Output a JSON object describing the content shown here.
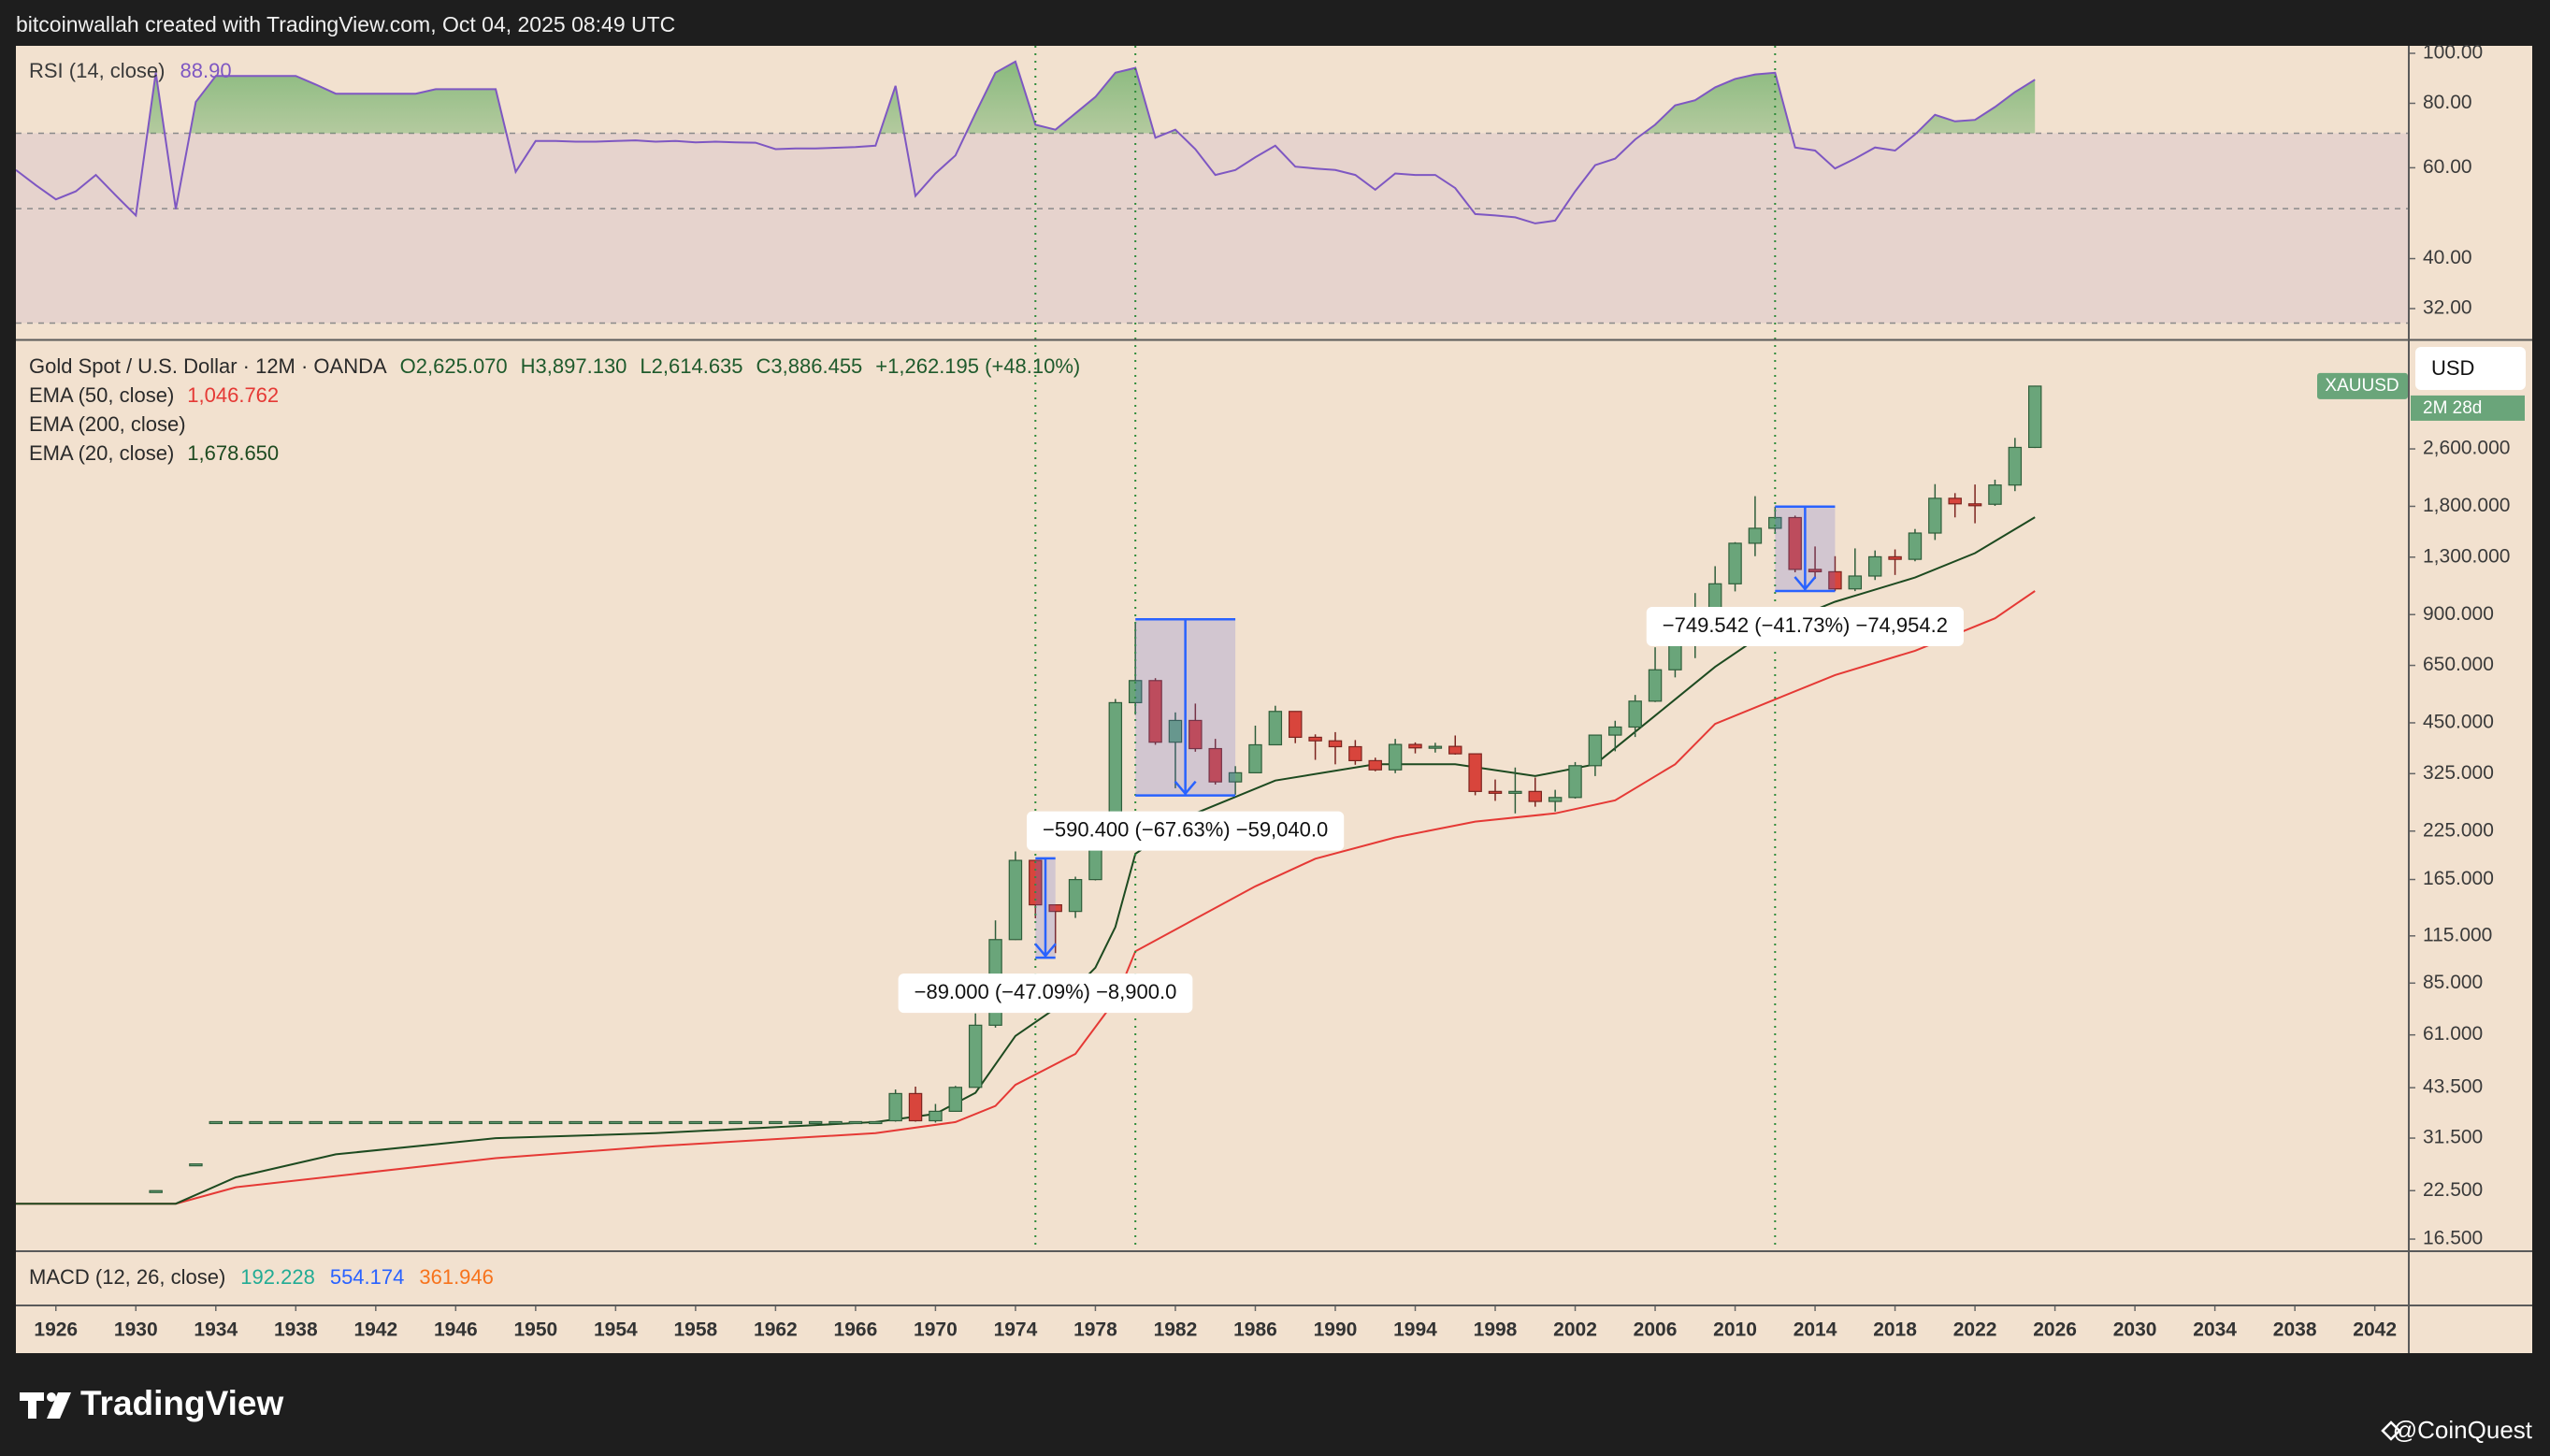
{
  "header": "bitcoinwallah created with TradingView.com, Oct 04, 2025 08:49 UTC",
  "footer": {
    "brand": "TradingView",
    "credit": "@CoinQuest"
  },
  "chart_data": [
    {
      "type": "line",
      "title": "RSI (14, close)",
      "readout": {
        "value": 88.9,
        "label": "88.90"
      },
      "color": "#7e57c2",
      "log_scale": true,
      "xlim": [
        1924,
        2043.7
      ],
      "ylim": [
        28,
        103.4
      ],
      "yticks": [
        {
          "value": 100,
          "label": "100.00"
        },
        {
          "value": 80,
          "label": "80.00"
        },
        {
          "value": 60,
          "label": "60.00"
        },
        {
          "value": 40,
          "label": "40.00"
        },
        {
          "value": 32,
          "label": "32.00"
        }
      ],
      "band": [
        30,
        70
      ],
      "midline": 50,
      "x": [
        1924,
        1925,
        1926,
        1927,
        1928,
        1929,
        1930,
        1931,
        1932,
        1933,
        1934,
        1935,
        1936,
        1937,
        1938,
        1939,
        1940,
        1941,
        1942,
        1943,
        1944,
        1945,
        1946,
        1947,
        1948,
        1949,
        1950,
        1951,
        1952,
        1953,
        1954,
        1955,
        1956,
        1957,
        1958,
        1959,
        1960,
        1961,
        1962,
        1963,
        1964,
        1965,
        1966,
        1967,
        1968,
        1969,
        1970,
        1971,
        1972,
        1973,
        1974,
        1975,
        1976,
        1977,
        1978,
        1979,
        1980,
        1981,
        1982,
        1983,
        1984,
        1985,
        1986,
        1987,
        1988,
        1989,
        1990,
        1991,
        1992,
        1993,
        1994,
        1995,
        1996,
        1997,
        1998,
        1999,
        2000,
        2001,
        2002,
        2003,
        2004,
        2005,
        2006,
        2007,
        2008,
        2009,
        2010,
        2011,
        2012,
        2013,
        2014,
        2015,
        2016,
        2017,
        2018,
        2019,
        2020,
        2021,
        2022,
        2023,
        2024,
        2025
      ],
      "values": [
        59.4,
        55.5,
        52.1,
        54.0,
        58.1,
        53.0,
        48.5,
        91.7,
        49.9,
        80.5,
        90.4,
        90.4,
        90.4,
        90.4,
        90.4,
        87.0,
        83.5,
        83.5,
        83.5,
        83.5,
        83.5,
        85.2,
        85.2,
        85.2,
        85.2,
        58.9,
        67.6,
        67.6,
        67.4,
        67.4,
        67.6,
        67.8,
        67.4,
        67.6,
        67.2,
        67.4,
        67.2,
        67.1,
        65.2,
        65.4,
        65.4,
        65.6,
        65.8,
        66.2,
        86.5,
        52.9,
        58.5,
        63.4,
        76.5,
        91.7,
        96.4,
        72.7,
        71.1,
        76.5,
        82.3,
        91.7,
        93.7,
        68.6,
        71.1,
        65.2,
        58.1,
        59.4,
        62.9,
        66.2,
        60.3,
        59.8,
        59.4,
        58.1,
        54.4,
        58.5,
        58.1,
        58.1,
        54.8,
        48.8,
        48.5,
        48.1,
        46.8,
        47.4,
        54.0,
        60.7,
        62.5,
        68.1,
        72.7,
        79.3,
        81.1,
        85.9,
        89.2,
        91.0,
        91.7,
        65.7,
        64.8,
        59.8,
        62.5,
        65.7,
        64.8,
        69.6,
        76.0,
        73.8,
        74.3,
        78.7,
        84.1,
        88.9
      ]
    },
    {
      "type": "candlestick",
      "title": "Gold Spot / U.S. Dollar · 12M · OANDA",
      "readout": [
        "O2,625.070",
        "H3,897.130",
        "L2,614.635",
        "C3,886.455",
        "+1,262.195 (+48.10%)"
      ],
      "log_scale": true,
      "xlim": [
        1924,
        2043.7
      ],
      "xticks": [
        1926,
        1930,
        1934,
        1938,
        1942,
        1946,
        1950,
        1954,
        1958,
        1962,
        1966,
        1970,
        1974,
        1978,
        1982,
        1986,
        1990,
        1994,
        1998,
        2002,
        2006,
        2010,
        2014,
        2018,
        2022,
        2026,
        2030,
        2034,
        2038,
        2042
      ],
      "ylim": [
        15.36,
        5178
      ],
      "yticks": [
        {
          "value": 2600,
          "label": "2,600.000"
        },
        {
          "value": 1800,
          "label": "1,800.000"
        },
        {
          "value": 1300,
          "label": "1,300.000"
        },
        {
          "value": 900,
          "label": "900.000"
        },
        {
          "value": 650,
          "label": "650.000"
        },
        {
          "value": 450,
          "label": "450.000"
        },
        {
          "value": 325,
          "label": "325.000"
        },
        {
          "value": 225,
          "label": "225.000"
        },
        {
          "value": 165,
          "label": "165.000"
        },
        {
          "value": 115,
          "label": "115.000"
        },
        {
          "value": 85,
          "label": "85.000"
        },
        {
          "value": 61,
          "label": "61.000"
        },
        {
          "value": 43.5,
          "label": "43.500"
        },
        {
          "value": 31.5,
          "label": "31.500"
        },
        {
          "value": 22.5,
          "label": "22.500"
        },
        {
          "value": 16.5,
          "label": "16.500"
        }
      ],
      "up_color": "#6aa57a",
      "down_color": "#d8453c",
      "candles": {
        "x": [
          1931,
          1933,
          1934,
          1935,
          1936,
          1937,
          1938,
          1939,
          1940,
          1941,
          1942,
          1943,
          1944,
          1945,
          1946,
          1947,
          1948,
          1949,
          1950,
          1951,
          1952,
          1953,
          1954,
          1955,
          1956,
          1957,
          1958,
          1959,
          1960,
          1961,
          1962,
          1963,
          1964,
          1965,
          1966,
          1967,
          1968,
          1969,
          1970,
          1971,
          1972,
          1973,
          1974,
          1975,
          1976,
          1977,
          1978,
          1979,
          1980,
          1981,
          1982,
          1983,
          1984,
          1985,
          1986,
          1987,
          1988,
          1989,
          1990,
          1991,
          1992,
          1993,
          1994,
          1995,
          1996,
          1997,
          1998,
          1999,
          2000,
          2001,
          2002,
          2003,
          2004,
          2005,
          2006,
          2007,
          2008,
          2009,
          2010,
          2011,
          2012,
          2013,
          2014,
          2015,
          2016,
          2017,
          2018,
          2019,
          2020,
          2021,
          2022,
          2023,
          2024,
          2025
        ],
        "ohlc": [
          [
            22.5,
            22.5,
            22.5,
            22.5
          ],
          [
            26.7,
            26.7,
            26.7,
            26.7
          ],
          [
            35,
            35,
            35,
            35
          ],
          [
            35,
            35,
            35,
            35
          ],
          [
            35,
            35,
            35,
            35
          ],
          [
            35,
            35,
            35,
            35
          ],
          [
            35,
            35,
            35,
            35
          ],
          [
            35,
            35,
            35,
            35
          ],
          [
            35,
            35,
            35,
            35
          ],
          [
            35,
            35,
            35,
            35
          ],
          [
            35,
            35,
            35,
            35
          ],
          [
            35,
            35,
            35,
            35
          ],
          [
            35,
            35,
            35,
            35
          ],
          [
            35,
            35,
            35,
            35
          ],
          [
            35,
            35,
            35,
            35
          ],
          [
            35,
            35,
            35,
            35
          ],
          [
            35,
            35,
            35,
            35
          ],
          [
            35,
            35,
            35,
            35
          ],
          [
            35,
            35,
            35,
            35
          ],
          [
            35,
            35,
            35,
            35
          ],
          [
            35,
            35,
            35,
            35
          ],
          [
            35,
            35,
            35,
            35
          ],
          [
            35,
            35,
            35,
            35
          ],
          [
            35,
            35,
            35,
            35
          ],
          [
            35,
            35,
            35,
            35
          ],
          [
            35,
            35,
            35,
            35
          ],
          [
            35,
            35,
            35,
            35
          ],
          [
            35,
            35,
            35,
            35
          ],
          [
            35,
            35,
            35,
            35
          ],
          [
            35,
            35,
            35,
            35
          ],
          [
            35,
            35,
            35,
            35
          ],
          [
            35,
            35,
            35,
            35
          ],
          [
            35,
            35,
            35,
            35
          ],
          [
            35,
            35,
            35,
            35
          ],
          [
            35,
            35,
            35,
            35
          ],
          [
            35,
            35,
            35,
            35
          ],
          [
            35.2,
            43,
            35,
            41.9
          ],
          [
            41.9,
            43.8,
            35,
            35.2
          ],
          [
            35.2,
            39.2,
            34.8,
            37.4
          ],
          [
            37.4,
            44,
            37.3,
            43.6
          ],
          [
            43.6,
            70,
            43.5,
            64.9
          ],
          [
            64.9,
            127,
            63.9,
            112.3
          ],
          [
            112.3,
            197.5,
            112,
            186.5
          ],
          [
            186.5,
            186.5,
            128.7,
            140.3
          ],
          [
            140.3,
            140.5,
            103,
            134.5
          ],
          [
            134.5,
            168,
            129,
            164.9
          ],
          [
            164.9,
            243.6,
            164,
            226
          ],
          [
            226,
            524,
            216,
            512
          ],
          [
            512,
            850,
            474,
            589.8
          ],
          [
            589.8,
            599,
            391,
            397.5
          ],
          [
            397.5,
            481,
            296,
            456.9
          ],
          [
            456.9,
            509,
            374,
            381.5
          ],
          [
            381.5,
            406,
            303,
            308.3
          ],
          [
            308.3,
            341,
            284,
            326.8
          ],
          [
            326.8,
            442,
            326,
            390.9
          ],
          [
            390.9,
            502,
            390,
            484.1
          ],
          [
            484.1,
            485,
            395,
            410.2
          ],
          [
            410.2,
            418,
            355,
            401
          ],
          [
            401,
            424,
            345,
            386.2
          ],
          [
            386.2,
            403,
            344,
            353.2
          ],
          [
            353.2,
            360,
            330,
            333
          ],
          [
            333,
            406,
            326,
            391.8
          ],
          [
            391.8,
            397,
            370,
            383.3
          ],
          [
            383.3,
            396,
            372,
            387
          ],
          [
            387,
            415,
            367,
            369
          ],
          [
            369,
            369,
            283,
            290
          ],
          [
            290,
            313,
            273,
            288
          ],
          [
            288,
            338,
            252,
            290
          ],
          [
            290,
            317,
            263,
            272
          ],
          [
            272,
            293,
            255,
            279
          ],
          [
            279,
            350,
            277,
            342
          ],
          [
            342,
            417,
            320,
            416
          ],
          [
            416,
            456,
            375,
            438
          ],
          [
            438,
            538,
            411,
            517
          ],
          [
            517,
            730,
            514,
            632
          ],
          [
            632,
            845,
            602,
            834
          ],
          [
            834,
            1033,
            681,
            880
          ],
          [
            880,
            1227,
            802,
            1096
          ],
          [
            1096,
            1431,
            1044,
            1421
          ],
          [
            1421,
            1921,
            1308,
            1564
          ],
          [
            1564,
            1796,
            1527,
            1675
          ],
          [
            1675,
            1696,
            1180,
            1202
          ],
          [
            1202,
            1392,
            1131,
            1184
          ],
          [
            1184,
            1308,
            1046,
            1061
          ],
          [
            1061,
            1375,
            1046,
            1152
          ],
          [
            1152,
            1357,
            1123,
            1303
          ],
          [
            1303,
            1366,
            1160,
            1282
          ],
          [
            1282,
            1557,
            1266,
            1517
          ],
          [
            1517,
            2075,
            1451,
            1895
          ],
          [
            1895,
            1959,
            1677,
            1829
          ],
          [
            1829,
            2070,
            1615,
            1824
          ],
          [
            1824,
            2135,
            1805,
            2063
          ],
          [
            2063,
            2790,
            1984,
            2625
          ],
          [
            2625.07,
            3897.13,
            2614.635,
            3886.455
          ]
        ]
      },
      "series": [
        {
          "name": "EMA (50, close)",
          "color": "#e53935",
          "last": {
            "value": 1046.762,
            "label": "1,046.762"
          },
          "x": [
            1924,
            1932,
            1935,
            1948,
            1956,
            1967,
            1971,
            1973,
            1974,
            1977,
            1979,
            1980,
            1983,
            1986,
            1989,
            1993,
            1997,
            2001,
            2004,
            2007,
            2009,
            2012,
            2015,
            2019,
            2023,
            2025
          ],
          "values": [
            20.7,
            20.7,
            23.0,
            27.7,
            29.9,
            32.5,
            34.9,
            38.7,
            44.3,
            54.0,
            76.2,
            104.2,
            128.3,
            158,
            188.5,
            216,
            239,
            252,
            274,
            345,
            447,
            523,
            611,
            714,
            879,
            1046.762
          ]
        },
        {
          "name": "EMA (200, close)"
        },
        {
          "name": "EMA (20, close)",
          "color": "#1d4a20",
          "last": {
            "value": 1678.65,
            "label": "1,678.650"
          },
          "x": [
            1924,
            1932,
            1935,
            1940,
            1948,
            1956,
            1967,
            1970,
            1972,
            1974,
            1976,
            1978,
            1979,
            1980,
            1983,
            1987,
            1992,
            1996,
            2000,
            2003,
            2006,
            2009,
            2012,
            2015,
            2019,
            2022,
            2025
          ],
          "values": [
            20.7,
            20.7,
            24.5,
            28.4,
            31.5,
            32.5,
            34.9,
            36.8,
            42.1,
            60.6,
            72.3,
            93.8,
            121.7,
            194.5,
            252,
            311,
            345,
            345,
            320,
            345,
            471,
            644,
            836,
            977,
            1141,
            1334,
            1678.65
          ]
        }
      ],
      "vlines": [
        1975,
        1980,
        2012
      ],
      "measures": [
        {
          "x": [
            1975,
            1976
          ],
          "top": 189,
          "bottom": 100,
          "label": "−89.000 (−47.09%) −8,900.0"
        },
        {
          "x": [
            1980,
            1985
          ],
          "top": 873,
          "bottom": 282.6,
          "label": "−590.400 (−67.63%) −59,040.0"
        },
        {
          "x": [
            2012,
            2015
          ],
          "top": 1796.2,
          "bottom": 1046.7,
          "label": "−749.542 (−41.73%) −74,954.2"
        }
      ],
      "tags": {
        "symbol": "XAUUSD",
        "currency": "USD",
        "countdown": "2M 28d"
      }
    },
    {
      "type": "macd",
      "title": "MACD (12, 26, close)",
      "readout": [
        {
          "value": 192.228,
          "color": "#22ab94"
        },
        {
          "value": 554.174,
          "color": "#2962ff"
        },
        {
          "value": 361.946,
          "color": "#f7731c"
        }
      ]
    }
  ]
}
